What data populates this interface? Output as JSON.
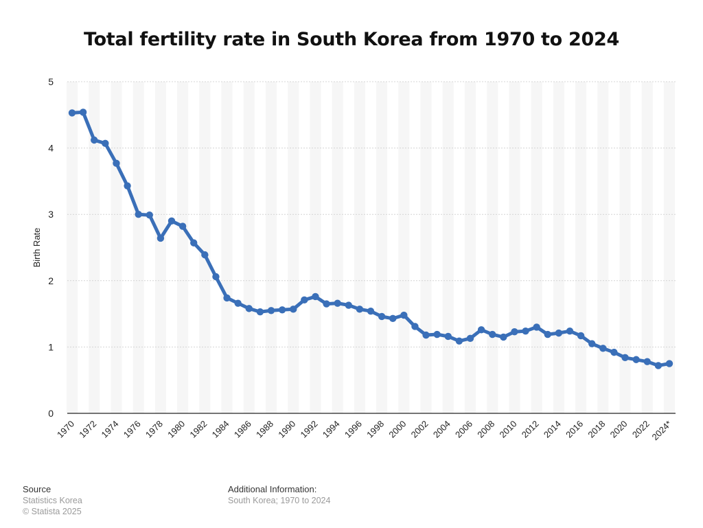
{
  "title": "Total fertility rate in South Korea from 1970 to 2024",
  "chart_data": {
    "type": "line",
    "title": "Total fertility rate in South Korea from 1970 to 2024",
    "xlabel": "",
    "ylabel": "Birth Rate",
    "ylim": [
      0,
      5
    ],
    "yticks": [
      0,
      1,
      2,
      3,
      4,
      5
    ],
    "grid": true,
    "series_color": "#3a6fb8",
    "categories": [
      "1970",
      "1971",
      "1972",
      "1973",
      "1974",
      "1975",
      "1976",
      "1977",
      "1978",
      "1979",
      "1980",
      "1981",
      "1982",
      "1983",
      "1984",
      "1985",
      "1986",
      "1987",
      "1988",
      "1989",
      "1990",
      "1991",
      "1992",
      "1993",
      "1994",
      "1995",
      "1996",
      "1997",
      "1998",
      "1999",
      "2000",
      "2001",
      "2002",
      "2003",
      "2004",
      "2005",
      "2006",
      "2007",
      "2008",
      "2009",
      "2010",
      "2011",
      "2012",
      "2013",
      "2014",
      "2015",
      "2016",
      "2017",
      "2018",
      "2019",
      "2020",
      "2021",
      "2022",
      "2023",
      "2024*"
    ],
    "tick_labels": [
      "1970",
      "1972",
      "1974",
      "1976",
      "1978",
      "1980",
      "1982",
      "1984",
      "1986",
      "1988",
      "1990",
      "1992",
      "1994",
      "1996",
      "1998",
      "2000",
      "2002",
      "2004",
      "2006",
      "2008",
      "2010",
      "2012",
      "2014",
      "2016",
      "2018",
      "2020",
      "2022",
      "2024*"
    ],
    "values": [
      4.53,
      4.54,
      4.12,
      4.07,
      3.77,
      3.43,
      3.0,
      2.99,
      2.64,
      2.9,
      2.82,
      2.57,
      2.39,
      2.06,
      1.74,
      1.66,
      1.58,
      1.53,
      1.55,
      1.56,
      1.57,
      1.71,
      1.76,
      1.65,
      1.66,
      1.63,
      1.57,
      1.54,
      1.46,
      1.43,
      1.48,
      1.31,
      1.18,
      1.19,
      1.16,
      1.09,
      1.13,
      1.26,
      1.19,
      1.15,
      1.23,
      1.24,
      1.3,
      1.19,
      1.21,
      1.24,
      1.17,
      1.05,
      0.98,
      0.92,
      0.84,
      0.81,
      0.78,
      0.72,
      0.75
    ]
  },
  "footer": {
    "source_heading": "Source",
    "source_line1": "Statistics Korea",
    "source_line2": "© Statista 2025",
    "info_heading": "Additional Information:",
    "info_line1": "South Korea; 1970 to 2024"
  }
}
